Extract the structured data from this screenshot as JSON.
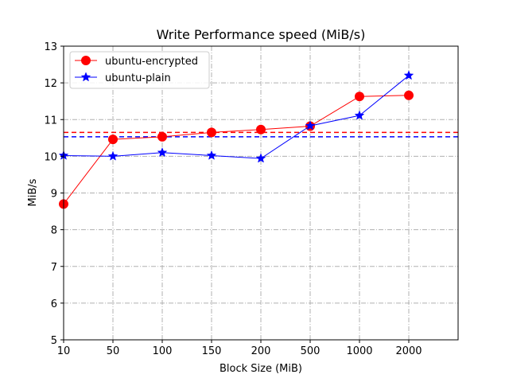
{
  "chart_data": {
    "type": "line",
    "title": "Write Performance speed (MiB/s)",
    "xlabel": "Block Size (MiB)",
    "ylabel": "MiB/s",
    "categories": [
      "10",
      "50",
      "100",
      "150",
      "200",
      "500",
      "1000",
      "2000"
    ],
    "ylim": [
      5,
      13
    ],
    "yticks": [
      5,
      6,
      7,
      8,
      9,
      10,
      11,
      12,
      13
    ],
    "grid": true,
    "legend_position": "top-left",
    "series": [
      {
        "name": "ubuntu-encrypted",
        "color": "#ff0000",
        "marker": "circle",
        "values": [
          8.7,
          10.46,
          10.53,
          10.65,
          10.73,
          10.82,
          11.63,
          11.66
        ],
        "mean_line": 10.65
      },
      {
        "name": "ubuntu-plain",
        "color": "#0000ff",
        "marker": "star",
        "values": [
          10.02,
          10.0,
          10.1,
          10.02,
          9.94,
          10.83,
          11.11,
          12.2
        ],
        "mean_line": 10.53
      }
    ]
  }
}
